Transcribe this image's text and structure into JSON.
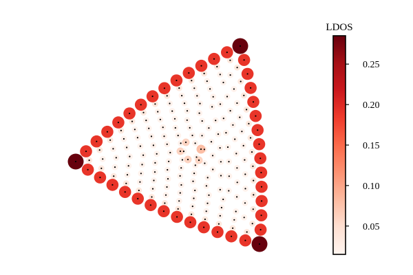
{
  "chart_data": {
    "type": "scatter",
    "title": "",
    "xlabel": "",
    "ylabel": "",
    "axes_visible": false,
    "grid": false,
    "colormap": "Reds",
    "colorbar": {
      "label": "LDOS",
      "range": [
        0.015,
        0.285
      ],
      "ticks": [
        "0.05",
        "0.10",
        "0.15",
        "0.20",
        "0.25"
      ],
      "tick_values": [
        0.05,
        0.1,
        0.15,
        0.2,
        0.25
      ],
      "placement": "right"
    },
    "description_values": {
      "corner_ldos": 0.285,
      "edge_ldos": 0.19,
      "bulk_ldos": 0.02,
      "center_ldos": 0.06,
      "near_edge_ldos": 0.035
    },
    "lattice": {
      "shape": "rounded-triangle",
      "corners": [
        "left",
        "top-right",
        "bottom-right"
      ]
    }
  }
}
